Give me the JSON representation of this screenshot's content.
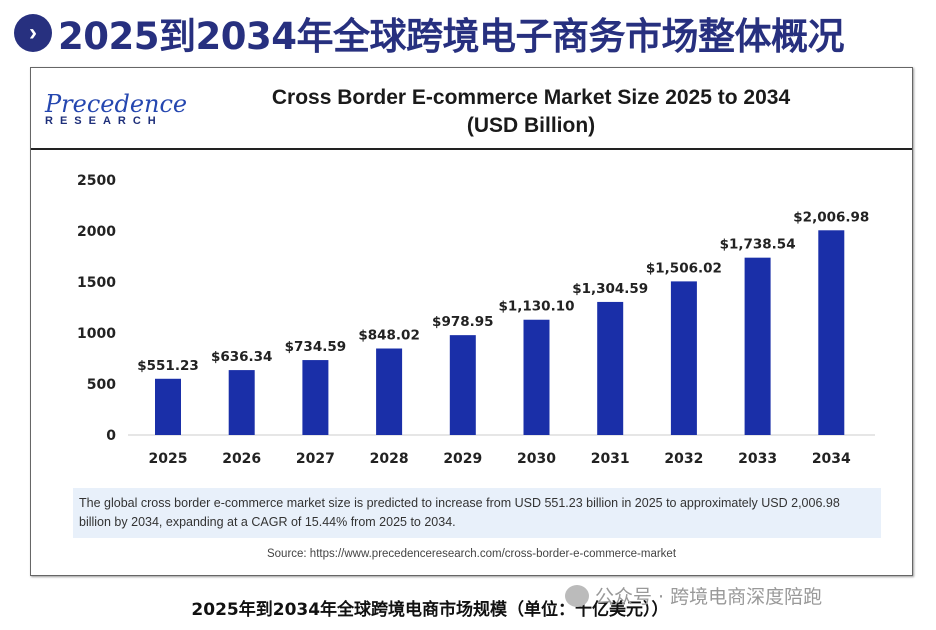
{
  "page_title": "2025到2034年全球跨境电子商务市场整体概况",
  "title_icon": "chevron-right-icon",
  "logo": {
    "line1": "Precedence",
    "line2": "RESEARCH"
  },
  "chart_data": {
    "type": "bar",
    "title": "Cross Border E-commerce Market Size 2025 to 2034",
    "subtitle": "(USD Billion)",
    "categories": [
      "2025",
      "2026",
      "2027",
      "2028",
      "2029",
      "2030",
      "2031",
      "2032",
      "2033",
      "2034"
    ],
    "values": [
      551.23,
      636.34,
      734.59,
      848.02,
      978.95,
      1130.1,
      1304.59,
      1506.02,
      1738.54,
      2006.98
    ],
    "data_labels": [
      "$551.23",
      "$636.34",
      "$734.59",
      "$848.02",
      "$978.95",
      "$1,130.10",
      "$1,304.59",
      "$1,506.02",
      "$1,738.54",
      "$2,006.98"
    ],
    "yticks": [
      "0",
      "500",
      "1000",
      "1500",
      "2000",
      "2500"
    ],
    "ylim": [
      0,
      2500
    ],
    "xlabel": "",
    "ylabel": "",
    "grid": false,
    "bar_color": "#1a2fa8"
  },
  "blurb": "The global cross border e-commerce market size is predicted to increase from USD 551.23 billion in 2025 to approximately USD 2,006.98 billion by 2034, expanding at a CAGR of 15.44% from 2025 to 2034.",
  "source": "Source: https://www.precedenceresearch.com/cross-border-e-commerce-market",
  "caption": "2025年到2034年全球跨境电商市场规模（单位：十亿美元））",
  "watermark": "公众号 · 跨境电商深度陪跑"
}
